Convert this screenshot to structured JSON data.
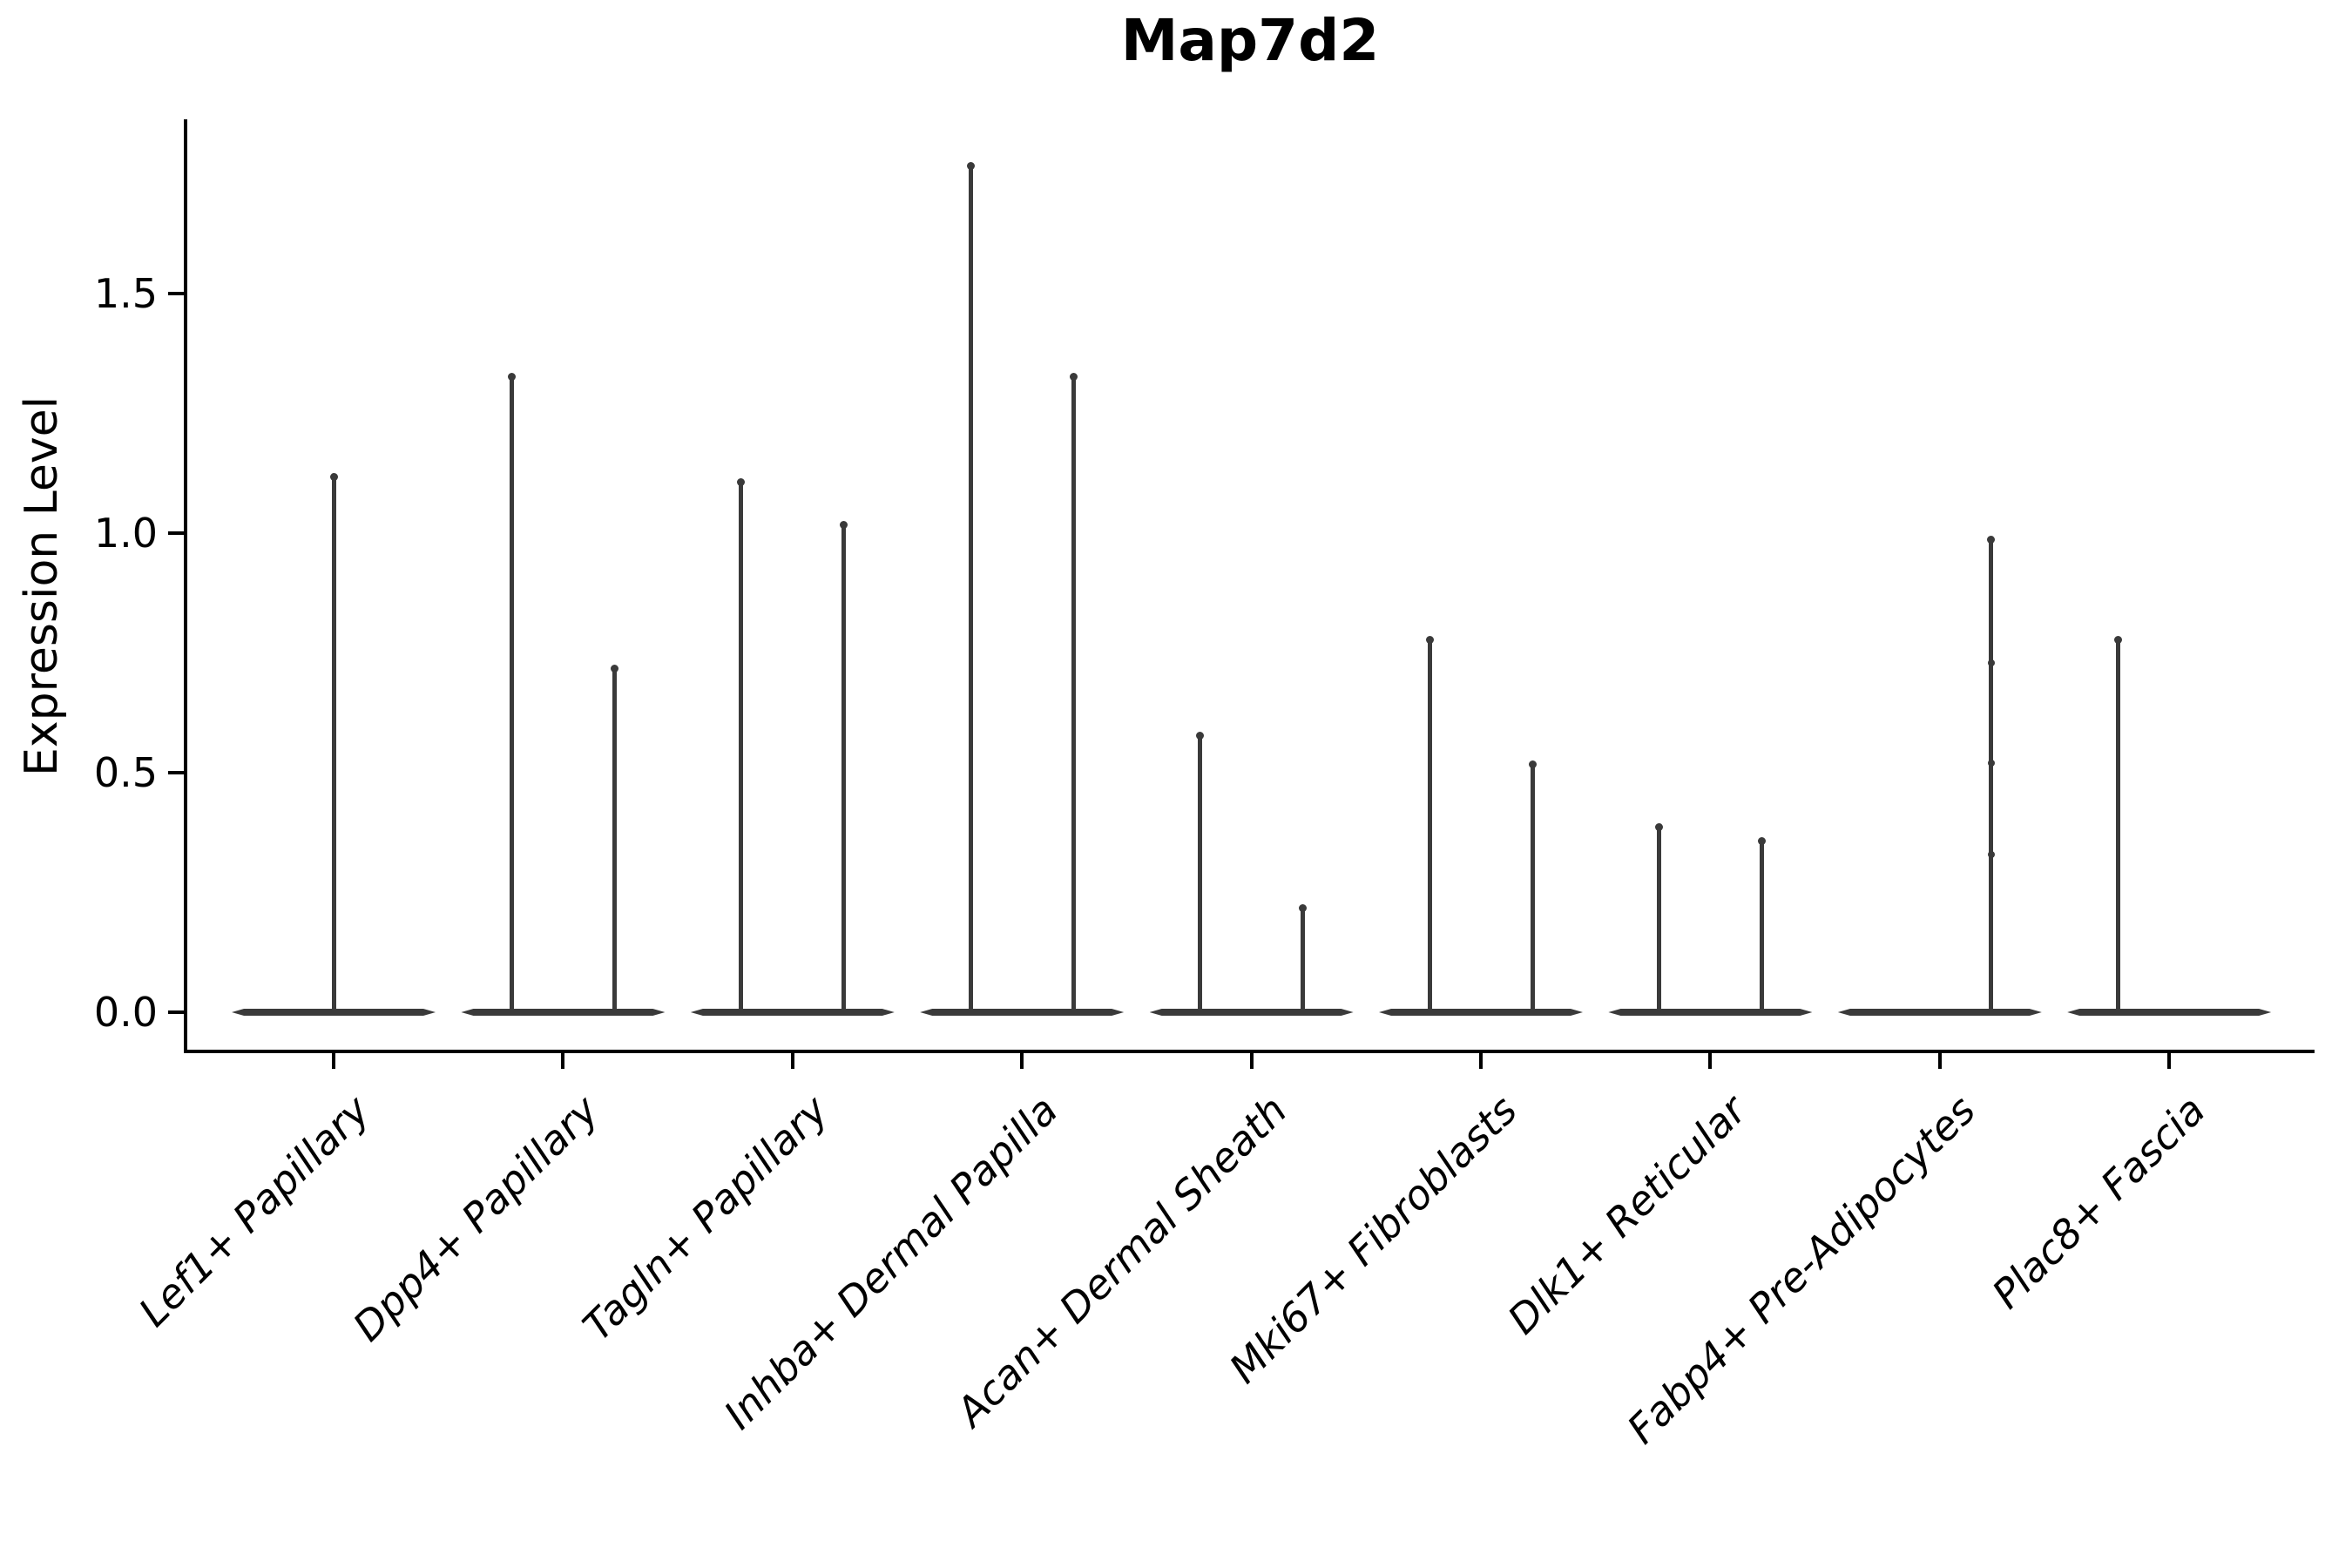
{
  "title": "Map7d2",
  "y_axis": {
    "label": "Expression Level",
    "tick_labels": [
      "0.0",
      "0.5",
      "1.0",
      "1.5"
    ]
  },
  "colors": {
    "violin": "#3a3a3a",
    "axis": "#000000",
    "text": "#000000",
    "background": "#ffffff"
  },
  "chart_data": {
    "type": "violin",
    "title": "Map7d2",
    "xlabel": "",
    "ylabel": "Expression Level",
    "ylim": [
      -0.09,
      1.86
    ],
    "yticks": [
      0.0,
      0.5,
      1.0,
      1.5
    ],
    "grid": false,
    "legend": "none",
    "categories": [
      "Lef1+ Papillary",
      "Dpp4+ Papillary",
      "Tagln+ Papillary",
      "Inhba+ Dermal Papilla",
      "Acan+ Dermal Sheath",
      "Mki67+ Fibroblasts",
      "Dlk1+ Reticular",
      "Fabp4+ Pre-Adipocytes",
      "Plac8+ Fascia"
    ],
    "violins": [
      {
        "category": "Lef1+ Papillary",
        "spikes": [
          {
            "position": "center",
            "max": 1.12
          }
        ]
      },
      {
        "category": "Dpp4+ Papillary",
        "spikes": [
          {
            "position": "left",
            "max": 1.33
          },
          {
            "position": "right",
            "max": 0.72
          }
        ]
      },
      {
        "category": "Tagln+ Papillary",
        "spikes": [
          {
            "position": "left",
            "max": 1.11
          },
          {
            "position": "right",
            "max": 1.02
          }
        ]
      },
      {
        "category": "Inhba+ Dermal Papilla",
        "spikes": [
          {
            "position": "left",
            "max": 1.77
          },
          {
            "position": "right",
            "max": 1.33
          }
        ]
      },
      {
        "category": "Acan+ Dermal Sheath",
        "spikes": [
          {
            "position": "left",
            "max": 0.58
          },
          {
            "position": "right",
            "max": 0.22
          }
        ]
      },
      {
        "category": "Mki67+ Fibroblasts",
        "spikes": [
          {
            "position": "left",
            "max": 0.78
          },
          {
            "position": "right",
            "max": 0.52
          }
        ]
      },
      {
        "category": "Dlk1+ Reticular",
        "spikes": [
          {
            "position": "left",
            "max": 0.39
          },
          {
            "position": "right",
            "max": 0.36
          }
        ]
      },
      {
        "category": "Fabp4+ Pre-Adipocytes",
        "spikes": [
          {
            "position": "right",
            "max": 0.99,
            "points": [
              0.73,
              0.52,
              0.33
            ]
          }
        ]
      },
      {
        "category": "Plac8+ Fascia",
        "spikes": [
          {
            "position": "left",
            "max": 0.78
          }
        ]
      }
    ]
  }
}
